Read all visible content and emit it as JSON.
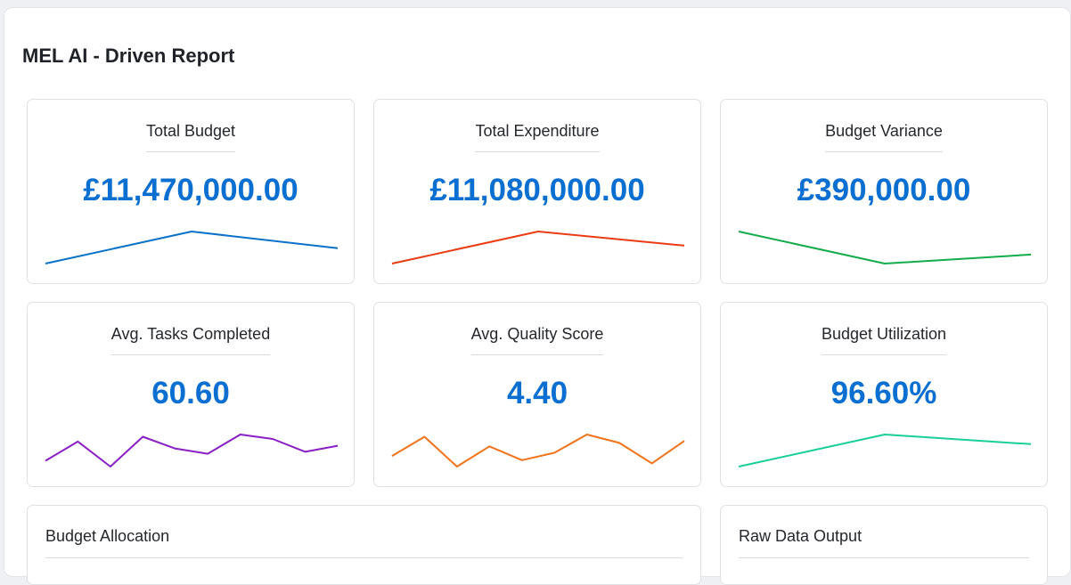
{
  "report": {
    "title": "MEL AI - Driven Report"
  },
  "cards": [
    {
      "label": "Total Budget",
      "value": "£11,470,000.00",
      "color": "#0a72c9",
      "trend": [
        0.0,
        1.0,
        0.48
      ]
    },
    {
      "label": "Total Expenditure",
      "value": "£11,080,000.00",
      "color": "#ea3b12",
      "trend": [
        0.0,
        1.0,
        0.56
      ]
    },
    {
      "label": "Budget Variance",
      "value": "£390,000.00",
      "color": "#12ad4a",
      "trend": [
        1.0,
        0.0,
        0.28
      ]
    },
    {
      "label": "Avg. Tasks Completed",
      "value": "60.60",
      "color": "#8a1fc4",
      "trend": [
        0.18,
        0.78,
        0.0,
        0.93,
        0.56,
        0.4,
        1.0,
        0.86,
        0.46,
        0.65
      ]
    },
    {
      "label": "Avg. Quality Score",
      "value": "4.40",
      "color": "#f0731a",
      "trend": [
        0.33,
        0.93,
        0.0,
        0.63,
        0.2,
        0.43,
        1.0,
        0.74,
        0.1,
        0.8
      ]
    },
    {
      "label": "Budget Utilization",
      "value": "96.60%",
      "color": "#18cf97",
      "trend": [
        0.0,
        1.0,
        0.7
      ]
    }
  ],
  "sections": [
    {
      "title": "Budget Allocation"
    },
    {
      "title": "Raw Data Output"
    }
  ]
}
